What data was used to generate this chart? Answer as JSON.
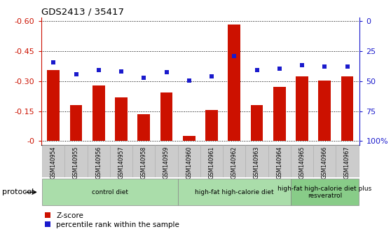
{
  "title": "GDS2413 / 35417",
  "samples": [
    "GSM140954",
    "GSM140955",
    "GSM140956",
    "GSM140957",
    "GSM140958",
    "GSM140959",
    "GSM140960",
    "GSM140961",
    "GSM140962",
    "GSM140963",
    "GSM140964",
    "GSM140965",
    "GSM140966",
    "GSM140967"
  ],
  "zscore": [
    -0.355,
    -0.18,
    -0.28,
    -0.22,
    -0.135,
    -0.245,
    -0.025,
    -0.155,
    -0.585,
    -0.18,
    -0.27,
    -0.325,
    -0.305,
    -0.325
  ],
  "percentile_y": [
    -0.395,
    -0.335,
    -0.355,
    -0.35,
    -0.318,
    -0.345,
    -0.305,
    -0.325,
    -0.425,
    -0.355,
    -0.362,
    -0.382,
    -0.375,
    -0.372
  ],
  "bar_color": "#CC1100",
  "dot_color": "#1A1ACC",
  "ylim": [
    -0.62,
    0.02
  ],
  "yticks_left": [
    0.0,
    -0.15,
    -0.3,
    -0.45,
    -0.6
  ],
  "ytick_left_labels": [
    "-0",
    "-0.15",
    "-0.30",
    "-0.45",
    "-0.60"
  ],
  "yticks_right_pct": [
    100,
    75,
    50,
    25,
    0
  ],
  "yticks_right_pos": [
    0.0,
    -0.15,
    -0.3,
    -0.45,
    -0.6
  ],
  "ytick_right_labels": [
    "100%",
    "75",
    "50",
    "25",
    "0"
  ],
  "ylabel_left_color": "#CC1100",
  "ylabel_right_color": "#1A1ACC",
  "groups": [
    {
      "label": "control diet",
      "start": 0,
      "end": 6,
      "color": "#AADDAA"
    },
    {
      "label": "high-fat high-calorie diet",
      "start": 6,
      "end": 11,
      "color": "#AADDAA"
    },
    {
      "label": "high-fat high-calorie diet plus\nresveratrol",
      "start": 11,
      "end": 14,
      "color": "#88CC88"
    }
  ],
  "protocol_label": "protocol",
  "legend_zscore": "Z-score",
  "legend_percentile": "percentile rank within the sample",
  "plot_bg": "#FFFFFF",
  "sample_box_color": "#CCCCCC",
  "bar_width": 0.55
}
